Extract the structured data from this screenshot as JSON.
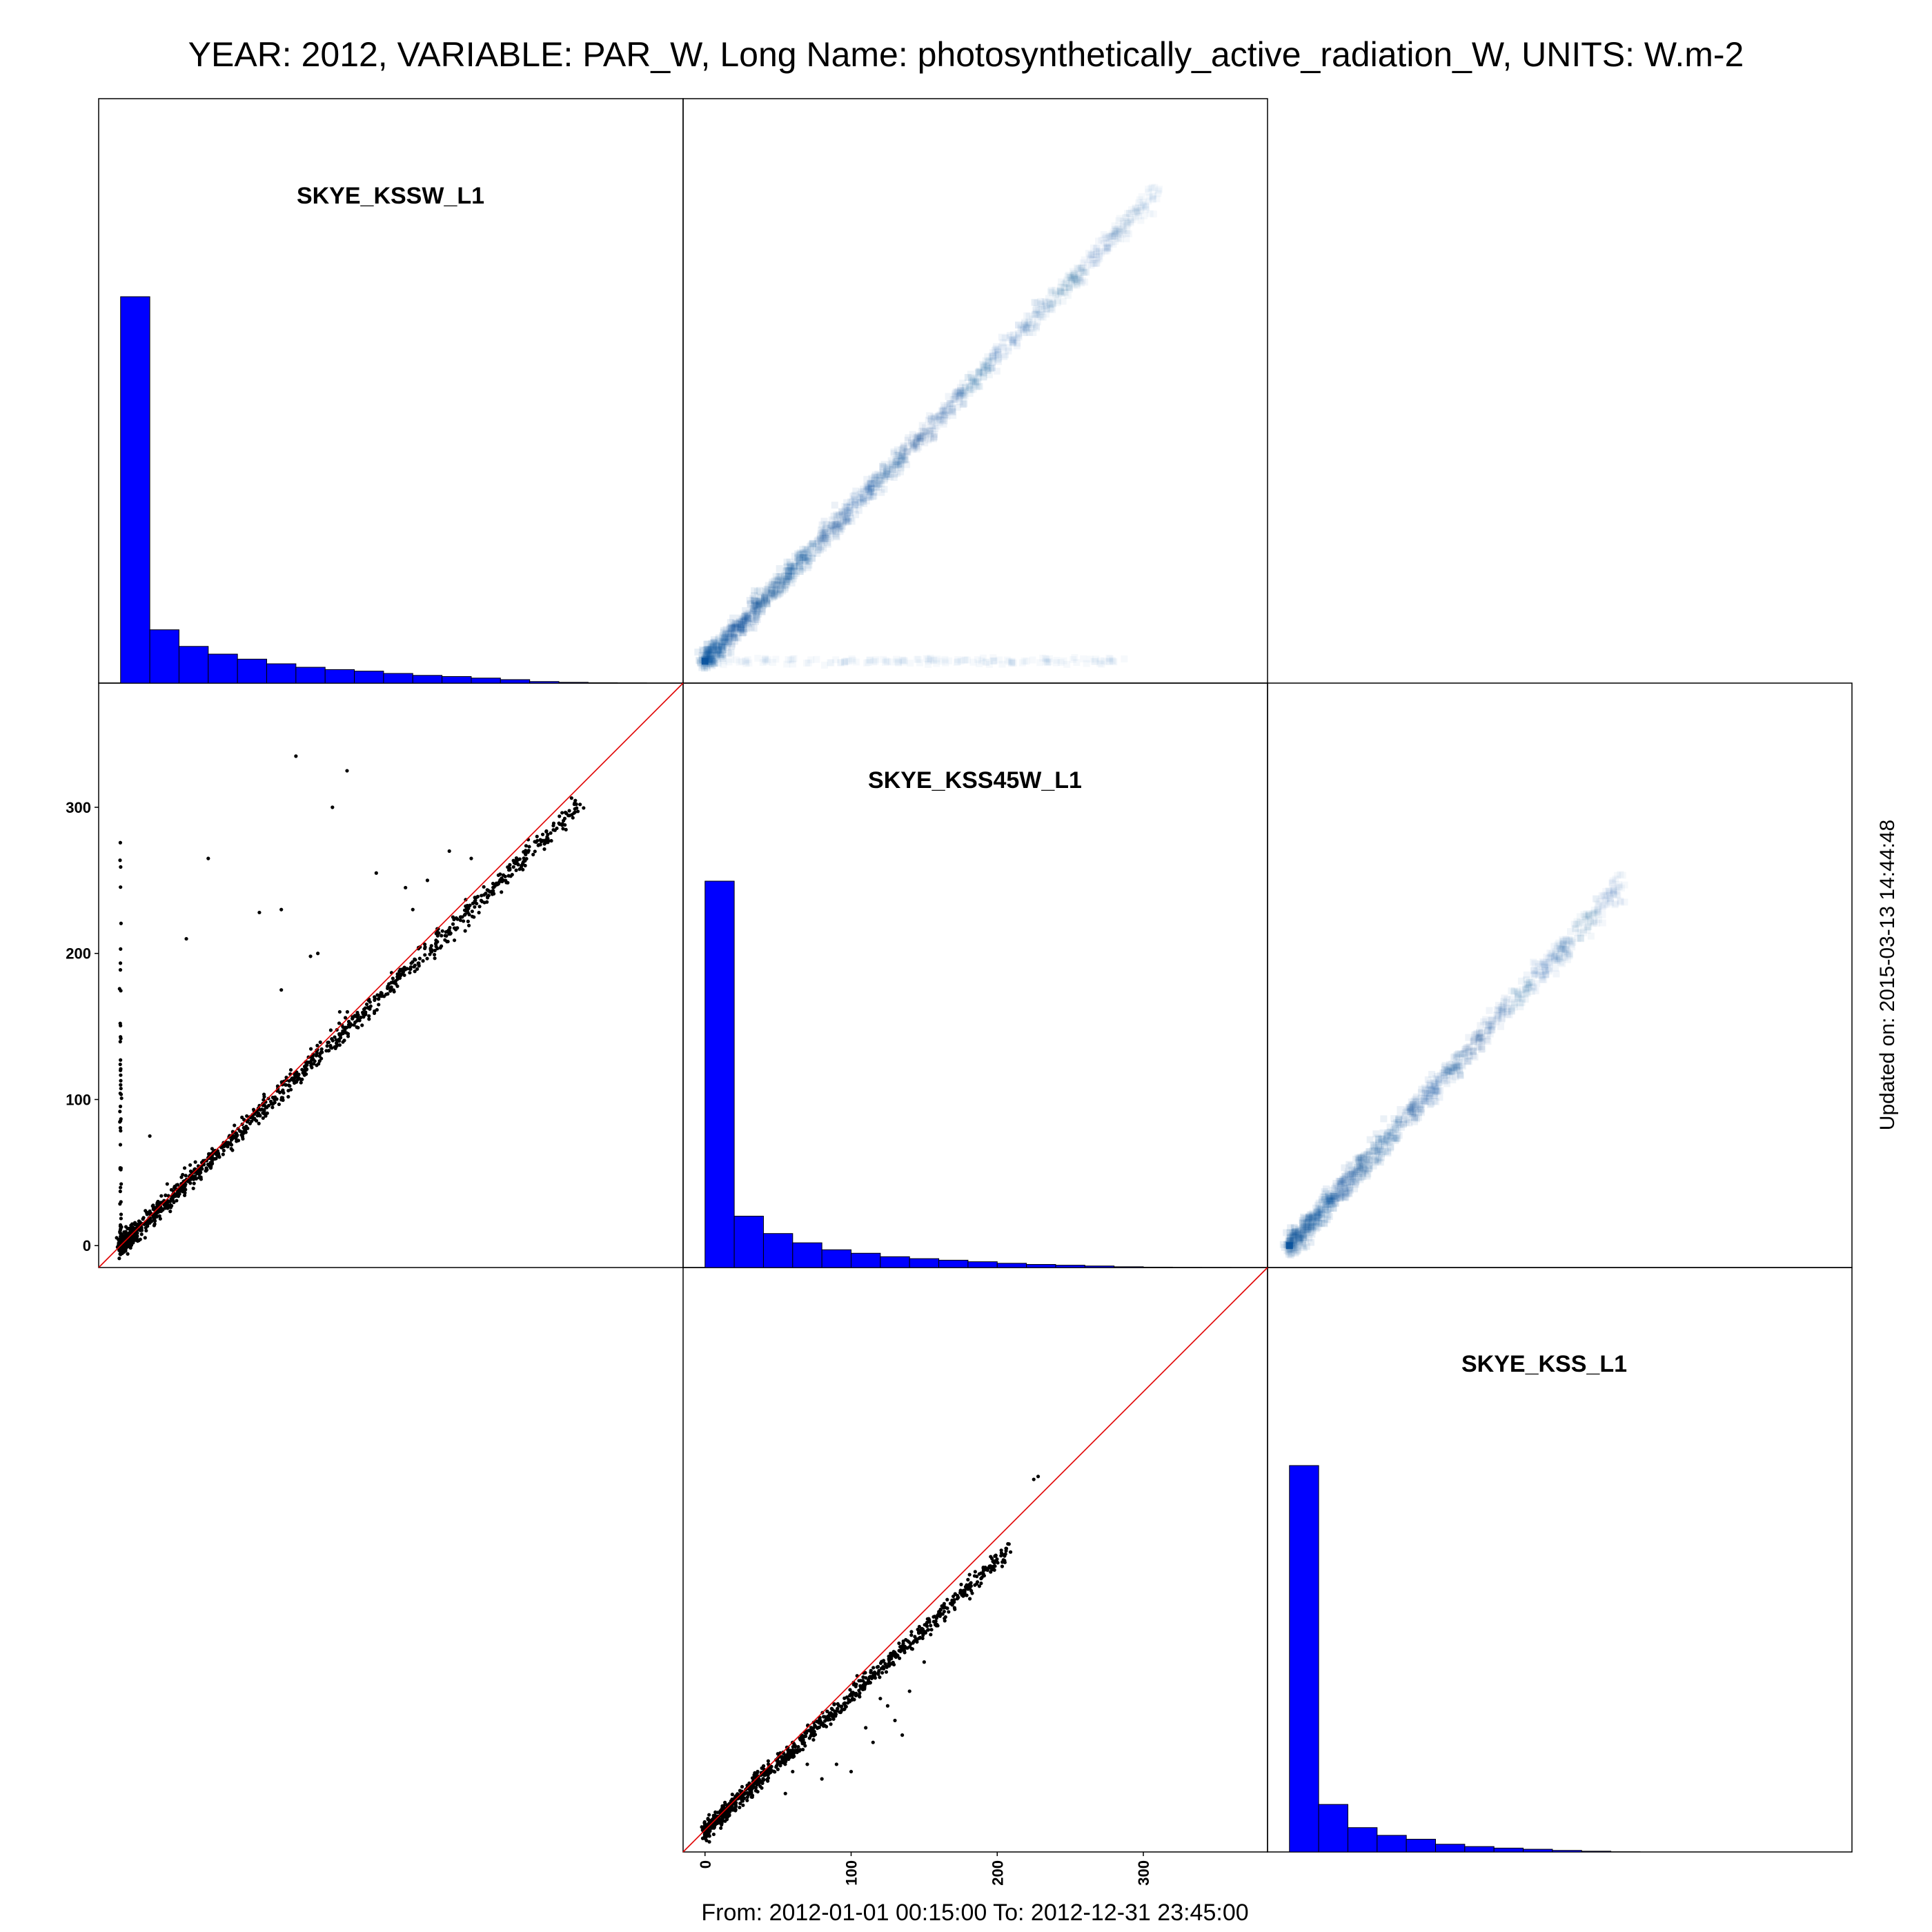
{
  "header": {
    "title": "YEAR: 2012, VARIABLE: PAR_W, Long Name: photosynthetically_active_radiation_W, UNITS: W.m-2"
  },
  "footer": {
    "period": "From: 2012-01-01 00:15:00 To: 2012-12-31 23:45:00"
  },
  "side_note": "Updated on: 2015-03-13 14:44:48",
  "colors": {
    "histogram_fill": "#0000ff",
    "identity_line": "#e00000",
    "scatter_points": "#000000",
    "density_light": "#deebf7",
    "density_dark": "#08519c"
  },
  "chart_data": [
    {
      "type": "bar",
      "panel": "diagonal-1",
      "label": "SKYE_KSSW_L1",
      "bin_width": 20,
      "bin_starts": [
        0,
        20,
        40,
        60,
        80,
        100,
        120,
        140,
        160,
        180,
        200,
        220,
        240,
        260,
        280,
        300,
        320,
        340
      ],
      "values": [
        100,
        13.8,
        9.5,
        7.5,
        6.2,
        5.0,
        4.1,
        3.5,
        3.1,
        2.5,
        2.0,
        1.7,
        1.3,
        0.9,
        0.4,
        0.2,
        0.1,
        0.05
      ]
    },
    {
      "type": "bar",
      "panel": "diagonal-2",
      "label": "SKYE_KSS45W_L1",
      "bin_width": 20,
      "bin_starts": [
        0,
        20,
        40,
        60,
        80,
        100,
        120,
        140,
        160,
        180,
        200,
        220,
        240,
        260,
        280,
        300,
        320,
        340
      ],
      "values": [
        100,
        13.3,
        8.8,
        6.4,
        4.6,
        3.7,
        2.8,
        2.3,
        1.9,
        1.5,
        1.1,
        0.8,
        0.6,
        0.4,
        0.2,
        0.1,
        0.05,
        0.02
      ]
    },
    {
      "type": "bar",
      "panel": "diagonal-3",
      "label": "SKYE_KSS_L1",
      "bin_width": 20,
      "bin_starts": [
        0,
        20,
        40,
        60,
        80,
        100,
        120,
        140,
        160,
        180,
        200,
        220
      ],
      "values": [
        100,
        12.3,
        6.3,
        4.3,
        3.3,
        2.0,
        1.4,
        1.0,
        0.7,
        0.4,
        0.2,
        0.05
      ]
    },
    {
      "type": "scatter",
      "panel": "lower-1",
      "x_variable": "SKYE_KSSW_L1",
      "y_variable": "SKYE_KSS45W_L1",
      "ylim": [
        -15,
        385
      ],
      "yticks": [
        0,
        100,
        200,
        300
      ],
      "reference_line": "y = x",
      "trend": {
        "slope": 0.96,
        "x_range": [
          0,
          315
        ],
        "spread": 5
      },
      "x_zero_column": {
        "x": 0,
        "y_range": [
          0,
          282
        ]
      },
      "outliers": [
        [
          120,
          335
        ],
        [
          155,
          325
        ],
        [
          145,
          300
        ],
        [
          60,
          265
        ],
        [
          45,
          210
        ],
        [
          110,
          230
        ],
        [
          95,
          228
        ],
        [
          110,
          175
        ],
        [
          150,
          160
        ],
        [
          20,
          75
        ],
        [
          225,
          270
        ],
        [
          195,
          245
        ],
        [
          175,
          255
        ],
        [
          240,
          265
        ],
        [
          210,
          250
        ],
        [
          285,
          280
        ],
        [
          135,
          200
        ],
        [
          130,
          198
        ],
        [
          200,
          230
        ]
      ]
    },
    {
      "type": "heatmap",
      "panel": "upper-1",
      "x_variable": "SKYE_KSS45W_L1",
      "y_variable": "SKYE_KSSW_L1",
      "description_values": {
        "main_slope": 1.04,
        "x_range": [
          0,
          310
        ],
        "zero_row_x_range": [
          0,
          290
        ]
      }
    },
    {
      "type": "scatter",
      "panel": "lower-2",
      "x_variable": "SKYE_KSS45W_L1",
      "y_variable": "SKYE_KSS_L1",
      "xlim": [
        -15,
        385
      ],
      "xticks": [
        0,
        100,
        200,
        300
      ],
      "reference_line": "y = x",
      "trend": {
        "slope": 0.92,
        "x_range": [
          0,
          210
        ],
        "spread": 4
      },
      "outliers": [
        [
          225,
          240
        ],
        [
          228,
          242
        ],
        [
          135,
          65
        ],
        [
          130,
          75
        ],
        [
          120,
          90
        ],
        [
          125,
          85
        ],
        [
          100,
          40
        ],
        [
          90,
          45
        ],
        [
          80,
          35
        ],
        [
          70,
          45
        ],
        [
          60,
          40
        ],
        [
          55,
          25
        ],
        [
          110,
          70
        ],
        [
          115,
          60
        ],
        [
          140,
          95
        ],
        [
          150,
          115
        ]
      ]
    },
    {
      "type": "heatmap",
      "panel": "upper-2",
      "x_variable": "SKYE_KSS_L1",
      "y_variable": "SKYE_KSS45W_L1",
      "description_values": {
        "main_slope": 1.09,
        "x_range": [
          0,
          230
        ]
      }
    }
  ]
}
